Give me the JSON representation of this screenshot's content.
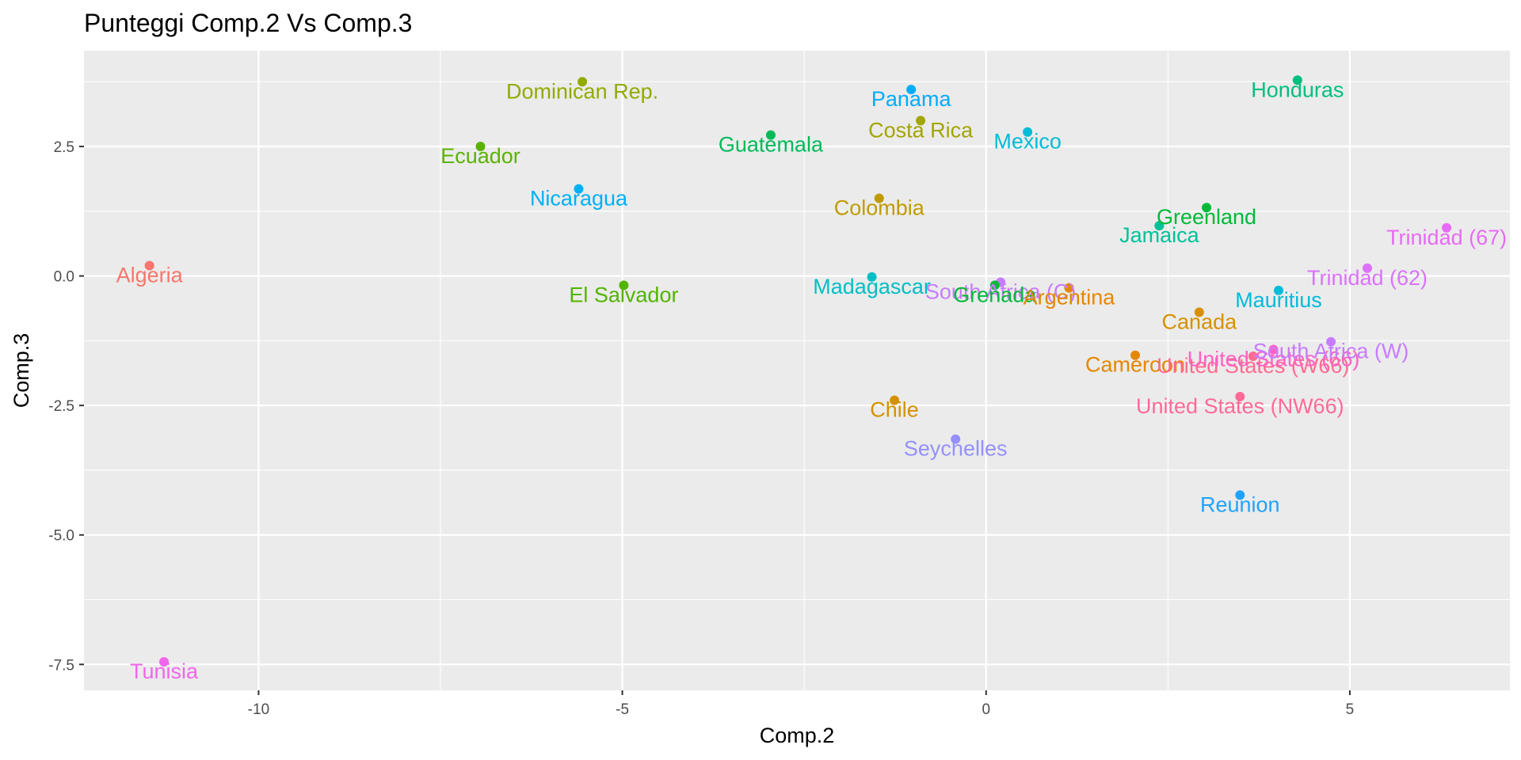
{
  "chart_data": {
    "type": "scatter",
    "title": "Punteggi Comp.2 Vs Comp.3",
    "xlabel": "Comp.2",
    "ylabel": "Comp.3",
    "xlim": [
      -12.4,
      7.2
    ],
    "ylim": [
      -8.0,
      4.35
    ],
    "xticks": [
      -10,
      -5,
      0,
      5
    ],
    "xtick_labels": [
      "-10",
      "-5",
      "0",
      "5"
    ],
    "yticks": [
      -7.5,
      -5.0,
      -2.5,
      0.0,
      2.5
    ],
    "ytick_labels": [
      "-7.5",
      "-5.0",
      "-2.5",
      "0.0",
      "2.5"
    ],
    "grid": true,
    "legend": "none",
    "panel_background": "#ebebeb",
    "grid_color": "#ffffff",
    "points": [
      {
        "label": "Algeria",
        "x": -11.5,
        "y": 0.2,
        "color": "#F8766D"
      },
      {
        "label": "Tunisia",
        "x": -11.3,
        "y": -7.45,
        "color": "#F066EA"
      },
      {
        "label": "Dominican Rep.",
        "x": -5.55,
        "y": 3.75,
        "color": "#93AA00"
      },
      {
        "label": "Ecuador",
        "x": -6.95,
        "y": 2.5,
        "color": "#5BB300"
      },
      {
        "label": "Nicaragua",
        "x": -5.6,
        "y": 1.68,
        "color": "#00B0F6"
      },
      {
        "label": "El Salvador",
        "x": -4.98,
        "y": -0.18,
        "color": "#53B400"
      },
      {
        "label": "Guatemala",
        "x": -2.96,
        "y": 2.72,
        "color": "#00BA5A"
      },
      {
        "label": "Panama",
        "x": -1.03,
        "y": 3.6,
        "color": "#00ADFA"
      },
      {
        "label": "Costa Rica",
        "x": -0.9,
        "y": 3.0,
        "color": "#A3A500"
      },
      {
        "label": "Colombia",
        "x": -1.47,
        "y": 1.5,
        "color": "#C09B00"
      },
      {
        "label": "Mexico",
        "x": 0.57,
        "y": 2.78,
        "color": "#00BCD6"
      },
      {
        "label": "Madagascar",
        "x": -1.57,
        "y": -0.02,
        "color": "#00BFC4"
      },
      {
        "label": "South Africa (C)",
        "x": 0.2,
        "y": -0.12,
        "color": "#C77CFF"
      },
      {
        "label": "Grenada",
        "x": 0.12,
        "y": -0.18,
        "color": "#00BA38"
      },
      {
        "label": "Argentina",
        "x": 1.14,
        "y": -0.23,
        "color": "#E58700"
      },
      {
        "label": "Chile",
        "x": -1.26,
        "y": -2.4,
        "color": "#D39200"
      },
      {
        "label": "Seychelles",
        "x": -0.42,
        "y": -3.15,
        "color": "#9590FF"
      },
      {
        "label": "Greenland",
        "x": 3.03,
        "y": 1.32,
        "color": "#00BA38"
      },
      {
        "label": "Jamaica",
        "x": 2.38,
        "y": 0.97,
        "color": "#00C19A"
      },
      {
        "label": "Honduras",
        "x": 4.28,
        "y": 3.78,
        "color": "#00BF7D"
      },
      {
        "label": "Canada",
        "x": 2.93,
        "y": -0.7,
        "color": "#D89000"
      },
      {
        "label": "Mauritius",
        "x": 4.02,
        "y": -0.28,
        "color": "#00BBDB"
      },
      {
        "label": "Cameroon",
        "x": 2.05,
        "y": -1.53,
        "color": "#E58700"
      },
      {
        "label": "United States (W66)",
        "x": 3.67,
        "y": -1.55,
        "color": "#FF6C91"
      },
      {
        "label": "United States (66)",
        "x": 3.95,
        "y": -1.42,
        "color": "#FF61C3"
      },
      {
        "label": "South Africa (W)",
        "x": 4.74,
        "y": -1.27,
        "color": "#C77CFF"
      },
      {
        "label": "United States (NW66)",
        "x": 3.49,
        "y": -2.33,
        "color": "#FF6A98"
      },
      {
        "label": "Reunion",
        "x": 3.49,
        "y": -4.23,
        "color": "#1FA3FF"
      },
      {
        "label": "Trinidad (62)",
        "x": 5.24,
        "y": 0.15,
        "color": "#DB72FB"
      },
      {
        "label": "Trinidad (67)",
        "x": 6.33,
        "y": 0.93,
        "color": "#E76BF3"
      }
    ]
  }
}
